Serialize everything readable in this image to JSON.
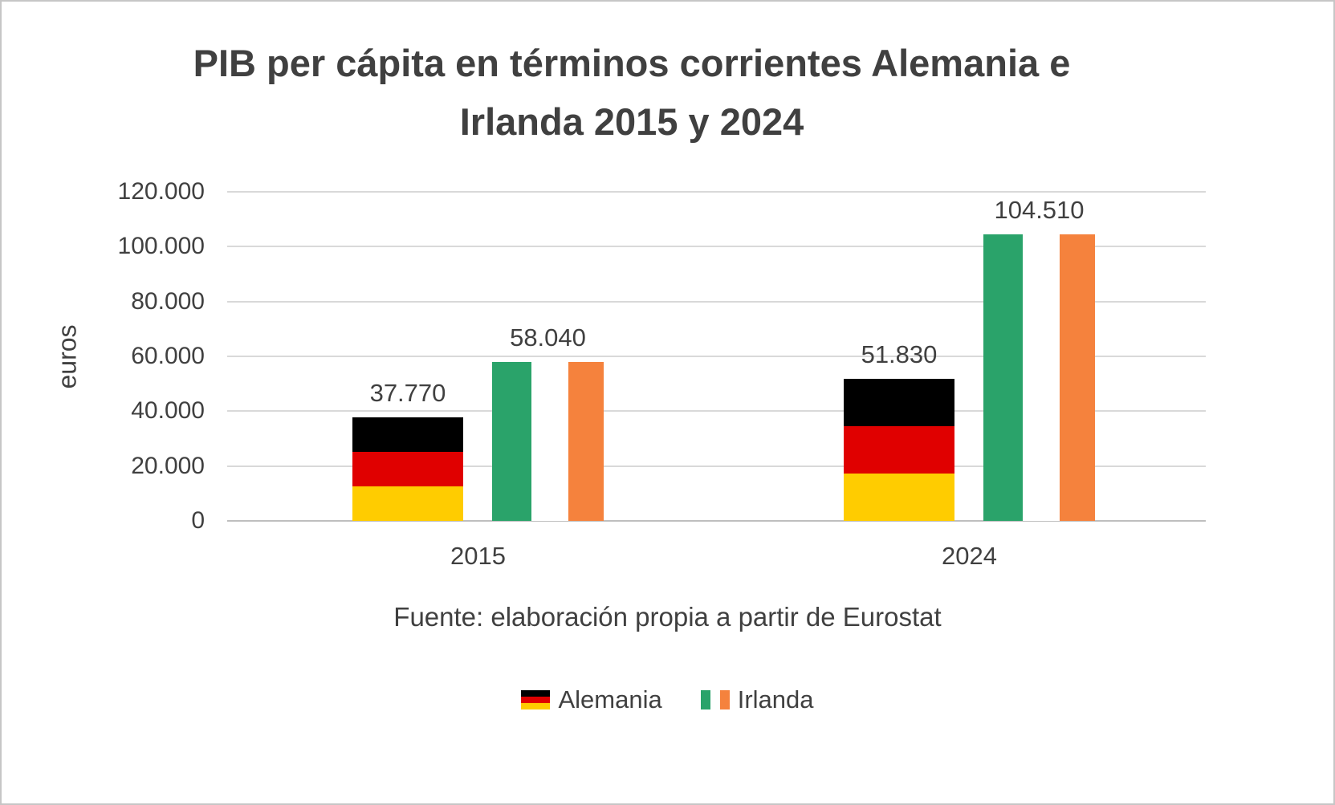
{
  "header": {
    "title_line1": "PIB per cápita en términos corrientes Alemania e",
    "title_line2": "Irlanda 2015 y 2024"
  },
  "source": "Fuente: elaboración propia a partir de Eurostat",
  "legend": [
    {
      "label": "Alemania"
    },
    {
      "label": "Irlanda"
    }
  ],
  "colors": {
    "germany_black": "#000000",
    "germany_red": "#E00000",
    "germany_gold": "#FFCC00",
    "ireland_green": "#2AA36A",
    "ireland_orange": "#F5823D",
    "gridline": "#D9D9D9",
    "text": "#404040"
  },
  "chart_data": {
    "type": "bar",
    "title": "PIB per cápita en términos corrientes Alemania e Irlanda 2015 y 2024",
    "categories": [
      "2015",
      "2024"
    ],
    "series": [
      {
        "name": "Alemania",
        "values": [
          37770,
          51830
        ],
        "labels": [
          "37.770",
          "51.830"
        ],
        "style": "german-flag"
      },
      {
        "name": "Irlanda",
        "values": [
          58040,
          104510
        ],
        "labels": [
          "58.040",
          "104.510"
        ],
        "style": "irish-flag"
      }
    ],
    "xlabel": "",
    "ylabel": "euros",
    "ylim": [
      0,
      120000
    ],
    "yticks": [
      0,
      20000,
      40000,
      60000,
      80000,
      100000,
      120000
    ],
    "ytick_labels": [
      "0",
      "20.000",
      "40.000",
      "60.000",
      "80.000",
      "100.000",
      "120.000"
    ],
    "grid": true,
    "legend_position": "bottom"
  }
}
